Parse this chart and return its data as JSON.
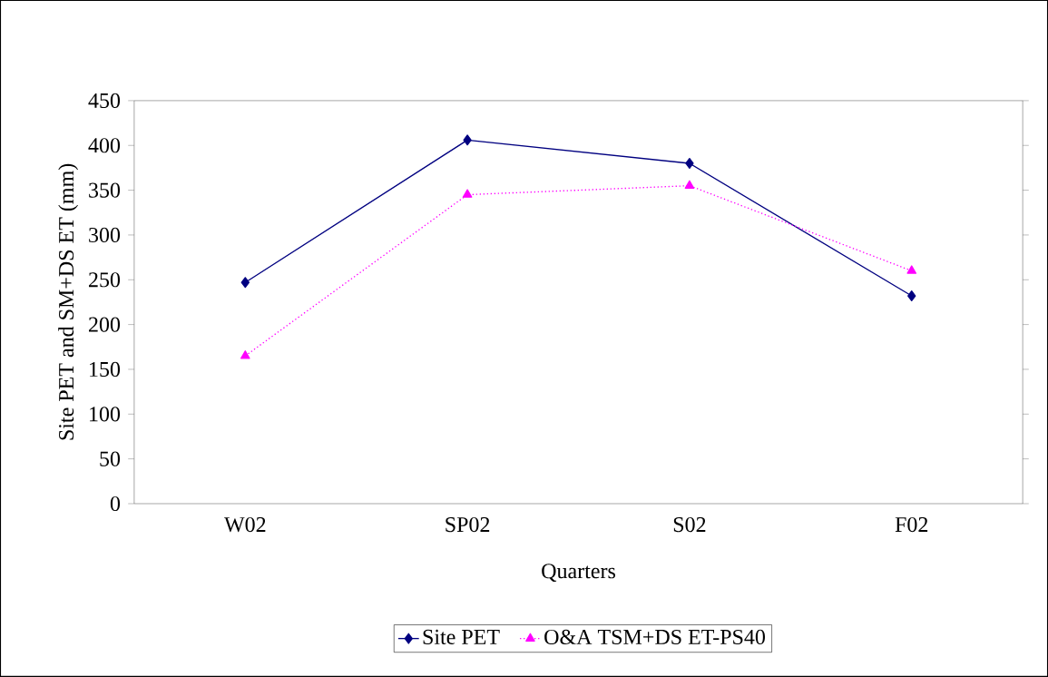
{
  "chart_data": {
    "type": "line",
    "xlabel": "Quarters",
    "ylabel": "Site PET and SM+DS ET (mm)",
    "categories": [
      "W02",
      "SP02",
      "S02",
      "F02"
    ],
    "series": [
      {
        "name": "Site PET",
        "color": "#000080",
        "values": [
          247,
          406,
          380,
          232
        ],
        "marker": "diamond",
        "line_style": "solid"
      },
      {
        "name": "O&A TSM+DS ET-PS40",
        "color": "#ff00ff",
        "values": [
          165,
          345,
          355,
          260
        ],
        "marker": "triangle",
        "line_style": "dotted"
      }
    ],
    "ylim": [
      0,
      450
    ],
    "yticks": [
      0,
      50,
      100,
      150,
      200,
      250,
      300,
      350,
      400,
      450
    ],
    "grid": false,
    "legend": "bottom"
  }
}
